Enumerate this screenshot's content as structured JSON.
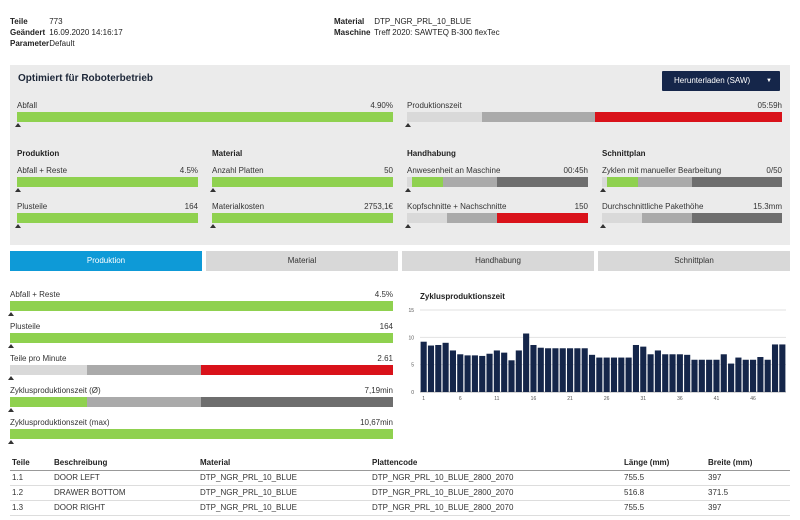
{
  "header": {
    "left": [
      {
        "key": "Teile",
        "value": "773"
      },
      {
        "key": "Geändert",
        "value": "16.09.2020 14:16:17"
      },
      {
        "key": "Parameter",
        "value": "Default"
      }
    ],
    "right": [
      {
        "key": "Material",
        "value": "DTP_NGR_PRL_10_BLUE"
      },
      {
        "key": "Maschine",
        "value": "Treff 2020: SAWTEQ B-300 flexTec"
      }
    ]
  },
  "summary": {
    "title": "Optimiert für Roboterbetrieb",
    "download_label": "Herunterladen (SAW)",
    "abfall": {
      "label": "Abfall",
      "value": "4.90%"
    },
    "produktionszeit": {
      "label": "Produktionszeit",
      "value": "05:59h"
    },
    "sections": {
      "produktion": "Produktion",
      "material": "Material",
      "handhabung": "Handhabung",
      "schnittplan": "Schnittplan"
    },
    "metrics": {
      "abfall_reste": {
        "label": "Abfall + Reste",
        "value": "4.5%"
      },
      "plusteile": {
        "label": "Plusteile",
        "value": "164"
      },
      "anzahl_platten": {
        "label": "Anzahl Platten",
        "value": "50"
      },
      "materialkosten": {
        "label": "Materialkosten",
        "value": "2753,1€"
      },
      "anwesenheit": {
        "label": "Anwesenheit an Maschine",
        "value": "00:45h"
      },
      "kopfschnitte": {
        "label": "Kopfschnitte + Nachschnitte",
        "value": "150"
      },
      "zyklen": {
        "label": "Zyklen mit manueller Bearbeitung",
        "value": "0/50"
      },
      "pakethoehe": {
        "label": "Durchschnittliche Pakethöhe",
        "value": "15.3mm"
      }
    }
  },
  "tabs": [
    "Produktion",
    "Material",
    "Handhabung",
    "Schnittplan"
  ],
  "detail": {
    "abfall_reste": {
      "label": "Abfall + Reste",
      "value": "4.5%"
    },
    "plusteile": {
      "label": "Plusteile",
      "value": "164"
    },
    "teile_pro_minute": {
      "label": "Teile pro Minute",
      "value": "2.61"
    },
    "zyklus_avg": {
      "label": "Zyklusproduktionszeit (Ø)",
      "value": "7,19min"
    },
    "zyklus_max": {
      "label": "Zyklusproduktionszeit (max)",
      "value": "10,67min"
    }
  },
  "colors": {
    "accent": "#0e9ad7",
    "navy": "#15264a",
    "green": "#8fd14f",
    "red": "#d9121a"
  },
  "chart_data": {
    "type": "bar",
    "title": "Zyklusproduktionszeit",
    "ylim": [
      0,
      15
    ],
    "yticks": [
      0,
      5,
      10,
      15
    ],
    "x_tick_labels": [
      "1",
      "6",
      "11",
      "16",
      "21",
      "26",
      "31",
      "36",
      "41",
      "46"
    ],
    "categories": [
      1,
      2,
      3,
      4,
      5,
      6,
      7,
      8,
      9,
      10,
      11,
      12,
      13,
      14,
      15,
      16,
      17,
      18,
      19,
      20,
      21,
      22,
      23,
      24,
      25,
      26,
      27,
      28,
      29,
      30,
      31,
      32,
      33,
      34,
      35,
      36,
      37,
      38,
      39,
      40,
      41,
      42,
      43,
      44,
      45,
      46,
      47,
      48,
      49,
      50
    ],
    "values": [
      9.2,
      8.5,
      8.6,
      9.0,
      7.6,
      6.9,
      6.7,
      6.7,
      6.6,
      7.0,
      7.6,
      7.2,
      5.8,
      7.6,
      10.7,
      8.6,
      8.1,
      8.0,
      8.0,
      8.0,
      8.0,
      8.0,
      8.0,
      6.8,
      6.3,
      6.3,
      6.3,
      6.3,
      6.3,
      8.6,
      8.3,
      6.9,
      7.6,
      6.9,
      6.9,
      6.9,
      6.8,
      5.9,
      5.9,
      5.9,
      5.9,
      6.9,
      5.2,
      6.3,
      5.9,
      5.9,
      6.4,
      5.9,
      8.7,
      8.7
    ],
    "bar_color": "#15264a"
  },
  "table": {
    "columns": [
      "Teile",
      "Beschreibung",
      "Material",
      "Plattencode",
      "Länge (mm)",
      "Breite (mm)"
    ],
    "rows": [
      [
        "1.1",
        "DOOR LEFT",
        "DTP_NGR_PRL_10_BLUE",
        "DTP_NGR_PRL_10_BLUE_2800_2070",
        "755.5",
        "397"
      ],
      [
        "1.2",
        "DRAWER BOTTOM",
        "DTP_NGR_PRL_10_BLUE",
        "DTP_NGR_PRL_10_BLUE_2800_2070",
        "516.8",
        "371.5"
      ],
      [
        "1.3",
        "DOOR RIGHT",
        "DTP_NGR_PRL_10_BLUE",
        "DTP_NGR_PRL_10_BLUE_2800_2070",
        "755.5",
        "397"
      ]
    ]
  }
}
